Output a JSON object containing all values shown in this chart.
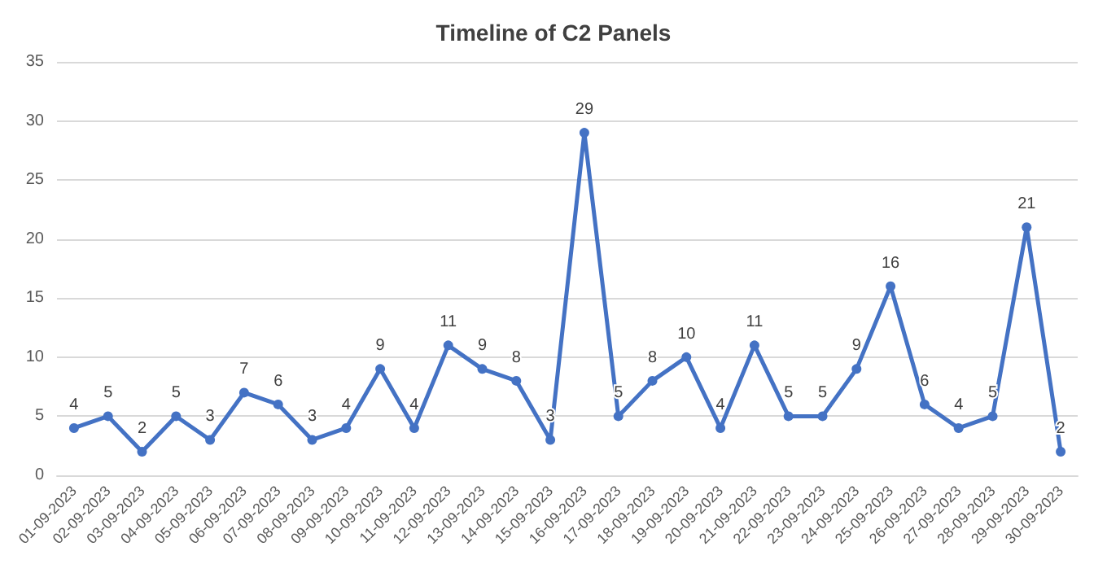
{
  "chart_data": {
    "type": "line",
    "title": "Timeline of C2 Panels",
    "categories": [
      "01-09-2023",
      "02-09-2023",
      "03-09-2023",
      "04-09-2023",
      "05-09-2023",
      "06-09-2023",
      "07-09-2023",
      "08-09-2023",
      "09-09-2023",
      "10-09-2023",
      "11-09-2023",
      "12-09-2023",
      "13-09-2023",
      "14-09-2023",
      "15-09-2023",
      "16-09-2023",
      "17-09-2023",
      "18-09-2023",
      "19-09-2023",
      "20-09-2023",
      "21-09-2023",
      "22-09-2023",
      "23-09-2023",
      "24-09-2023",
      "25-09-2023",
      "26-09-2023",
      "27-09-2023",
      "28-09-2023",
      "29-09-2023",
      "30-09-2023"
    ],
    "series": [
      {
        "color": "#4472c4",
        "values": [
          4,
          5,
          2,
          5,
          3,
          7,
          6,
          3,
          4,
          9,
          4,
          11,
          9,
          8,
          3,
          29,
          5,
          8,
          10,
          4,
          11,
          5,
          5,
          9,
          16,
          6,
          4,
          5,
          21,
          2
        ]
      }
    ],
    "ylim": [
      0,
      35
    ],
    "yticks": [
      0,
      5,
      10,
      15,
      20,
      25,
      30,
      35
    ],
    "grid": "y",
    "marker": "circle",
    "line_style": "solid",
    "data_labels": true
  }
}
